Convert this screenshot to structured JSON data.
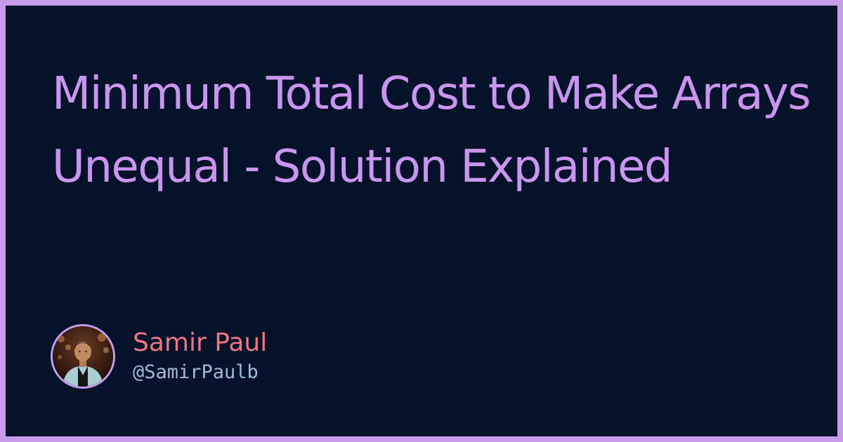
{
  "card": {
    "title": "Minimum Total Cost to Make Arrays Unequal - Solution Explained",
    "colors": {
      "background": "#05122a",
      "border": "#c69be9",
      "title": "#c995ee",
      "author_name": "#ee7582",
      "author_handle": "#9fbcd9"
    }
  },
  "author": {
    "name": "Samir Paul",
    "handle": "@SamirPaulb",
    "avatar_icon": "profile-photo"
  }
}
